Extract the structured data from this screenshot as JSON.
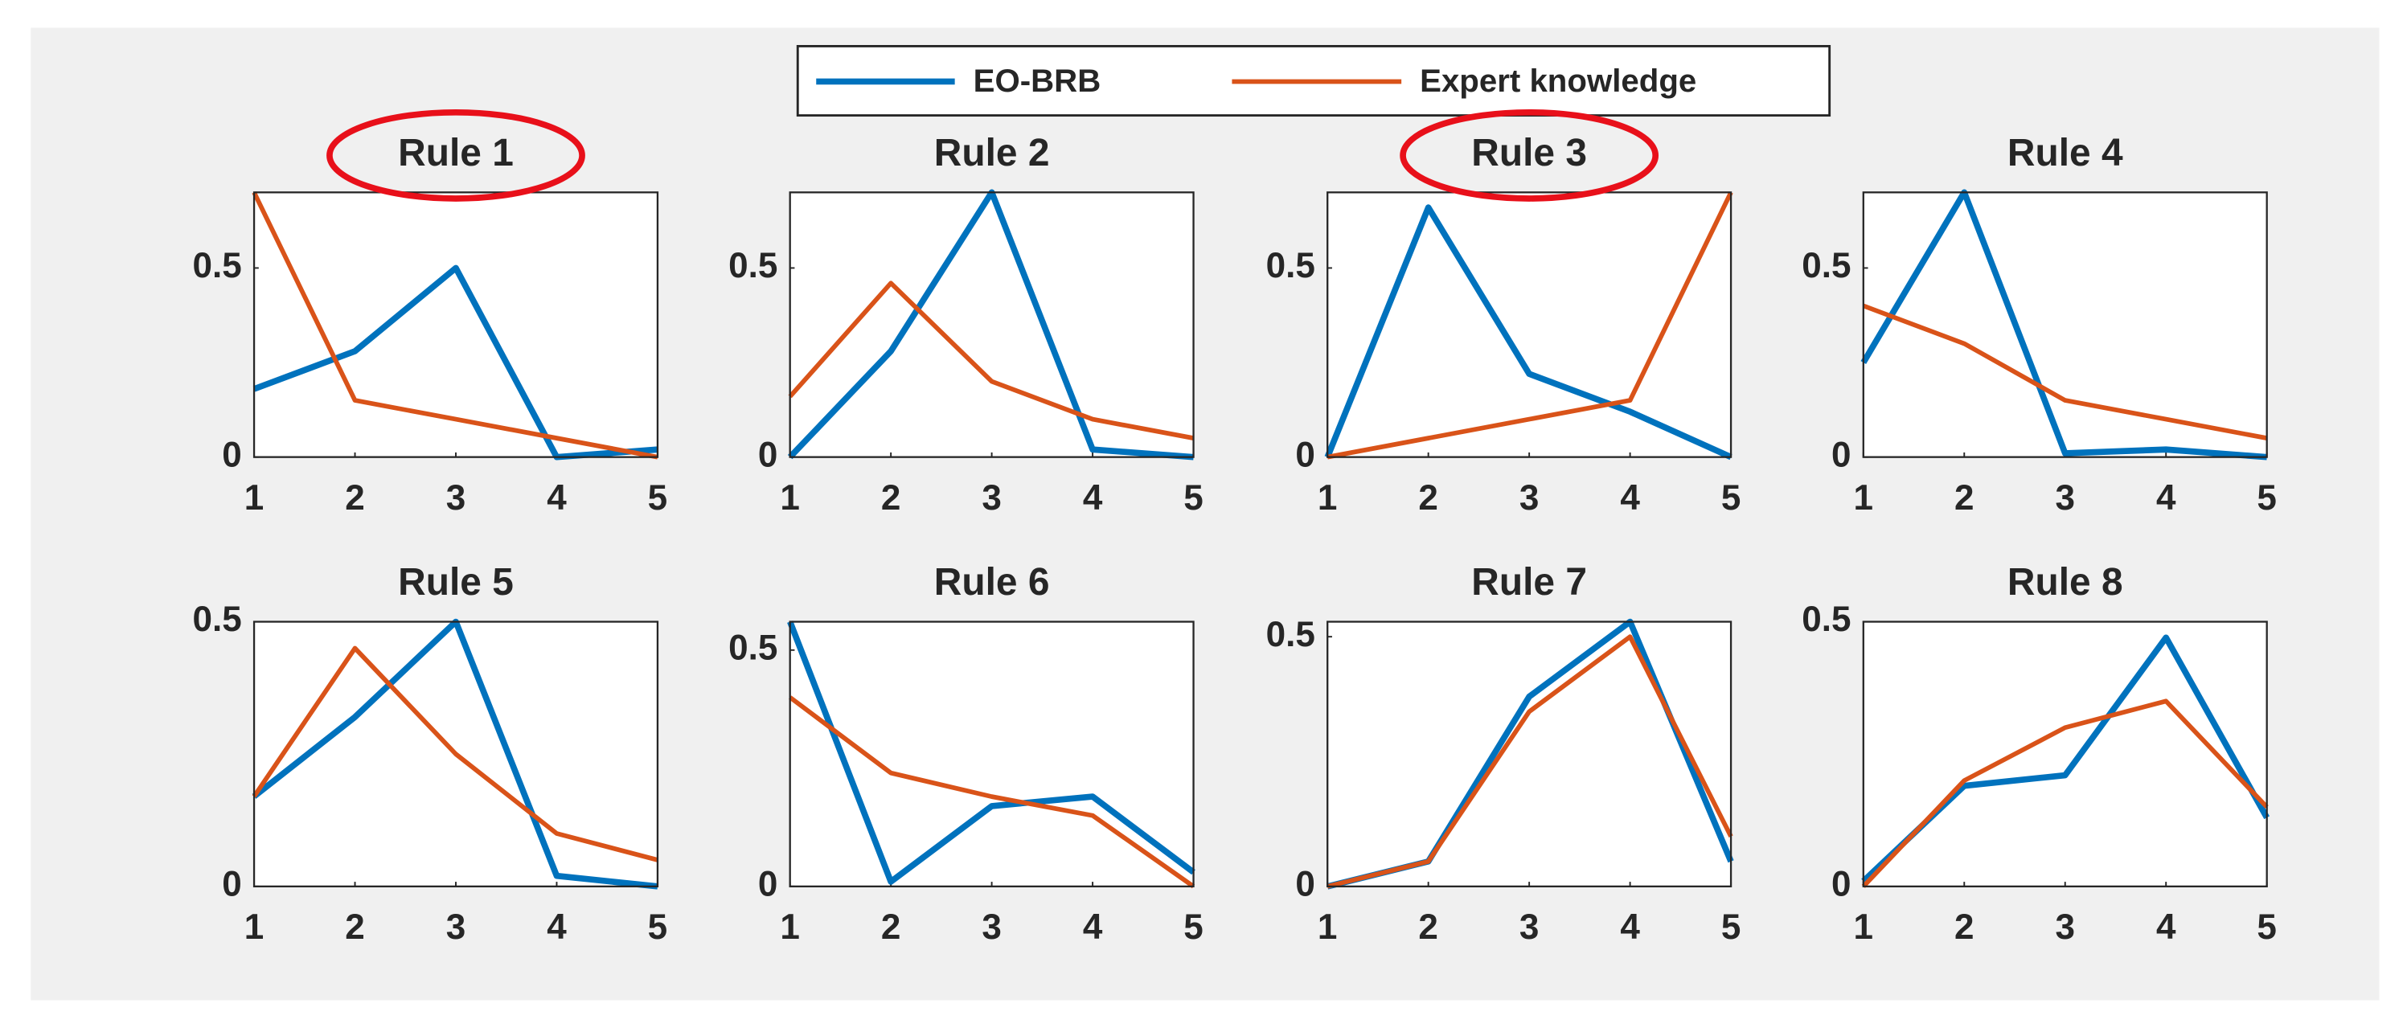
{
  "chart_data": [
    {
      "type": "line",
      "title": "Rule 1",
      "x": [
        1,
        2,
        3,
        4,
        5
      ],
      "xlim": [
        1,
        5
      ],
      "xticks": [
        1,
        2,
        3,
        4,
        5
      ],
      "ylim": [
        0,
        0.7
      ],
      "yticks": [
        0,
        0.5
      ],
      "series": [
        {
          "name": "EO-BRB",
          "color": "#0072bd",
          "values": [
            0.18,
            0.28,
            0.5,
            0,
            0.02
          ]
        },
        {
          "name": "Expert knowledge",
          "color": "#d95319",
          "values": [
            0.7,
            0.15,
            0.1,
            0.05,
            0
          ]
        }
      ]
    },
    {
      "type": "line",
      "title": "Rule 2",
      "x": [
        1,
        2,
        3,
        4,
        5
      ],
      "xlim": [
        1,
        5
      ],
      "xticks": [
        1,
        2,
        3,
        4,
        5
      ],
      "ylim": [
        0,
        0.7
      ],
      "yticks": [
        0,
        0.5
      ],
      "series": [
        {
          "color": "#0072bd",
          "values": [
            0,
            0.28,
            0.7,
            0.02,
            0
          ]
        },
        {
          "color": "#d95319",
          "values": [
            0.16,
            0.46,
            0.2,
            0.1,
            0.05
          ]
        }
      ]
    },
    {
      "type": "line",
      "title": "Rule 3",
      "x": [
        1,
        2,
        3,
        4,
        5
      ],
      "xlim": [
        1,
        5
      ],
      "xticks": [
        1,
        2,
        3,
        4,
        5
      ],
      "ylim": [
        0,
        0.7
      ],
      "yticks": [
        0,
        0.5
      ],
      "series": [
        {
          "color": "#0072bd",
          "values": [
            0,
            0.66,
            0.22,
            0.12,
            0
          ]
        },
        {
          "color": "#d95319",
          "values": [
            0,
            0.05,
            0.1,
            0.15,
            0.7
          ]
        }
      ]
    },
    {
      "type": "line",
      "title": "Rule 4",
      "x": [
        1,
        2,
        3,
        4,
        5
      ],
      "xlim": [
        1,
        5
      ],
      "xticks": [
        1,
        2,
        3,
        4,
        5
      ],
      "ylim": [
        0,
        0.7
      ],
      "yticks": [
        0,
        0.5
      ],
      "series": [
        {
          "color": "#0072bd",
          "values": [
            0.25,
            0.7,
            0.01,
            0.02,
            0
          ]
        },
        {
          "color": "#d95319",
          "values": [
            0.4,
            0.3,
            0.15,
            0.1,
            0.05
          ]
        }
      ]
    },
    {
      "type": "line",
      "title": "Rule 5",
      "x": [
        1,
        2,
        3,
        4,
        5
      ],
      "xlim": [
        1,
        5
      ],
      "xticks": [
        1,
        2,
        3,
        4,
        5
      ],
      "ylim": [
        0,
        0.5
      ],
      "yticks": [
        0,
        0.5
      ],
      "series": [
        {
          "color": "#0072bd",
          "values": [
            0.17,
            0.32,
            0.5,
            0.02,
            0
          ]
        },
        {
          "color": "#d95319",
          "values": [
            0.17,
            0.45,
            0.25,
            0.1,
            0.05
          ]
        }
      ]
    },
    {
      "type": "line",
      "title": "Rule 6",
      "x": [
        1,
        2,
        3,
        4,
        5
      ],
      "xlim": [
        1,
        5
      ],
      "xticks": [
        1,
        2,
        3,
        4,
        5
      ],
      "ylim": [
        0,
        0.56
      ],
      "yticks": [
        0,
        0.5
      ],
      "series": [
        {
          "color": "#0072bd",
          "values": [
            0.56,
            0.01,
            0.17,
            0.19,
            0.03
          ]
        },
        {
          "color": "#d95319",
          "values": [
            0.4,
            0.24,
            0.19,
            0.15,
            0
          ]
        }
      ]
    },
    {
      "type": "line",
      "title": "Rule 7",
      "x": [
        1,
        2,
        3,
        4,
        5
      ],
      "xlim": [
        1,
        5
      ],
      "xticks": [
        1,
        2,
        3,
        4,
        5
      ],
      "ylim": [
        0,
        0.53
      ],
      "yticks": [
        0,
        0.5
      ],
      "series": [
        {
          "color": "#0072bd",
          "values": [
            0,
            0.05,
            0.38,
            0.53,
            0.05
          ]
        },
        {
          "color": "#d95319",
          "values": [
            0,
            0.05,
            0.35,
            0.5,
            0.1
          ]
        }
      ]
    },
    {
      "type": "line",
      "title": "Rule 8",
      "x": [
        1,
        2,
        3,
        4,
        5
      ],
      "xlim": [
        1,
        5
      ],
      "xticks": [
        1,
        2,
        3,
        4,
        5
      ],
      "ylim": [
        0,
        0.5
      ],
      "yticks": [
        0,
        0.5
      ],
      "series": [
        {
          "color": "#0072bd",
          "values": [
            0.01,
            0.19,
            0.21,
            0.47,
            0.13
          ]
        },
        {
          "color": "#d95319",
          "values": [
            0,
            0.2,
            0.3,
            0.35,
            0.15
          ]
        }
      ]
    }
  ]
}
